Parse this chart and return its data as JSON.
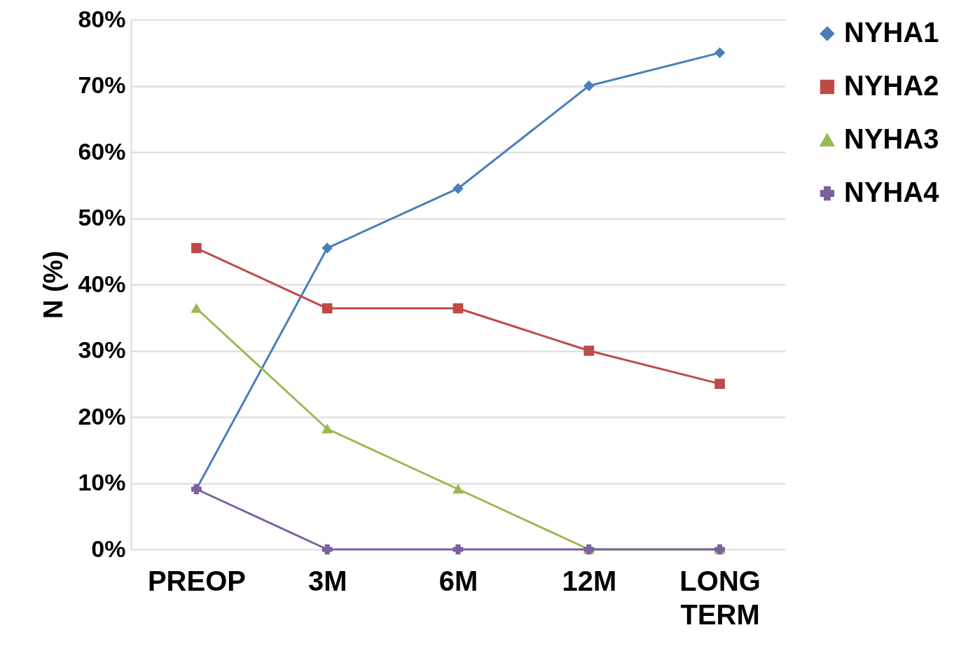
{
  "chart_data": {
    "type": "line",
    "ylabel": "N (%)",
    "categories": [
      "PREOP",
      "3M",
      "6M",
      "12M",
      "LONG TERM"
    ],
    "series": [
      {
        "name": "NYHA1",
        "color": "#4a7ebb",
        "marker": "diamond",
        "values": [
          9.1,
          45.5,
          54.5,
          70,
          75
        ]
      },
      {
        "name": "NYHA2",
        "color": "#be4b48",
        "marker": "square",
        "values": [
          45.5,
          36.4,
          36.4,
          30,
          25
        ]
      },
      {
        "name": "NYHA3",
        "color": "#98b954",
        "marker": "triangle",
        "values": [
          36.4,
          18.2,
          9.1,
          0,
          0
        ]
      },
      {
        "name": "NYHA4",
        "color": "#7d60a0",
        "marker": "cross",
        "values": [
          9.1,
          0,
          0,
          0,
          0
        ]
      }
    ],
    "ylim": [
      0,
      80
    ],
    "yticks": [
      {
        "value": 0,
        "label": "0%"
      },
      {
        "value": 10,
        "label": "10%"
      },
      {
        "value": 20,
        "label": "20%"
      },
      {
        "value": 30,
        "label": "30%"
      },
      {
        "value": 40,
        "label": "40%"
      },
      {
        "value": 50,
        "label": "50%"
      },
      {
        "value": 60,
        "label": "60%"
      },
      {
        "value": 70,
        "label": "70%"
      },
      {
        "value": 80,
        "label": "80%"
      }
    ],
    "grid": "y",
    "legend": "right",
    "line_style": "solid"
  }
}
